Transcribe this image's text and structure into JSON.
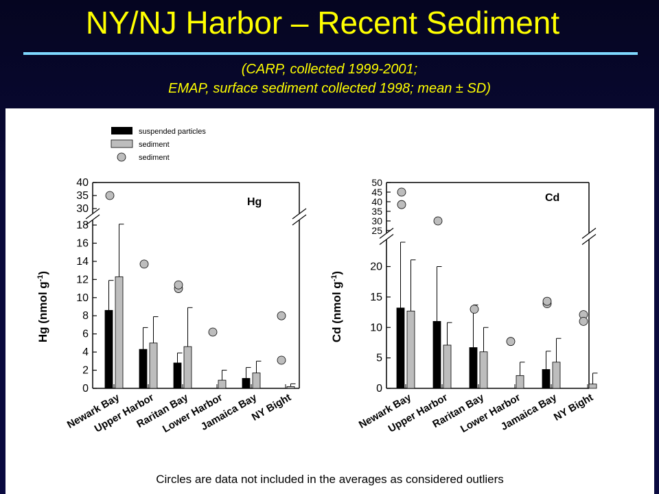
{
  "slide": {
    "title": "NY/NJ Harbor – Recent Sediment",
    "subtitle_line1": "(CARP, collected 1999-2001;",
    "subtitle_line2": "EMAP, surface sediment collected 1998; mean ± SD)",
    "footnote": "Circles are data not included in the averages as considered outliers"
  },
  "legend": {
    "items": [
      {
        "label": "suspended particles",
        "marker": "black-bar"
      },
      {
        "label": "sediment",
        "marker": "gray-bar"
      },
      {
        "label": "sediment",
        "marker": "gray-circle"
      }
    ]
  },
  "colors": {
    "background": "#0a0a3a",
    "title": "#ffff00",
    "rule": "#7fd8ff",
    "suspended": "#000000",
    "sediment": "#bdbdbd"
  },
  "chart_data": [
    {
      "type": "bar",
      "label": "Hg",
      "ylabel": "Hg (nmol g-1)",
      "categories": [
        "Newark Bay",
        "Upper Harbor",
        "Raritan Bay",
        "Lower Harbor",
        "Jamaica Bay",
        "NY Bight"
      ],
      "axis_break": {
        "lower_range": [
          0,
          18
        ],
        "upper_range": [
          30,
          40
        ]
      },
      "lower_ticks": [
        0,
        2,
        4,
        6,
        8,
        10,
        12,
        14,
        16,
        18
      ],
      "upper_ticks": [
        30,
        35,
        40
      ],
      "series": [
        {
          "name": "suspended particles",
          "values": [
            8.6,
            4.3,
            2.8,
            null,
            1.1,
            null
          ],
          "sd": [
            3.3,
            2.4,
            1.1,
            null,
            1.2,
            null
          ]
        },
        {
          "name": "sediment",
          "values": [
            12.3,
            5.0,
            4.6,
            0.9,
            1.7,
            0.2
          ],
          "sd": [
            5.8,
            2.9,
            4.3,
            1.1,
            1.3,
            0.3
          ]
        }
      ],
      "outliers": [
        {
          "category": "Newark Bay",
          "value": 35
        },
        {
          "category": "Upper Harbor",
          "value": 13.7
        },
        {
          "category": "Raritan Bay",
          "value": 11.0
        },
        {
          "category": "Raritan Bay",
          "value": 11.4
        },
        {
          "category": "Lower Harbor",
          "value": 6.2
        },
        {
          "category": "NY Bight",
          "value": 8.0
        },
        {
          "category": "NY Bight",
          "value": 3.1
        }
      ]
    },
    {
      "type": "bar",
      "label": "Cd",
      "ylabel": "Cd (nmol g-1)",
      "categories": [
        "Newark Bay",
        "Upper Harbor",
        "Raritan Bay",
        "Lower Harbor",
        "Jamaica Bay",
        "NY Bight"
      ],
      "axis_break": {
        "lower_range": [
          0,
          24
        ],
        "upper_range": [
          25,
          50
        ]
      },
      "lower_ticks": [
        0,
        5,
        10,
        15,
        20
      ],
      "upper_ticks": [
        25,
        30,
        35,
        40,
        45,
        50
      ],
      "series": [
        {
          "name": "suspended particles",
          "values": [
            13.2,
            11.0,
            6.7,
            null,
            3.1,
            null
          ],
          "sd": [
            10.8,
            9.0,
            7.0,
            null,
            3.0,
            null
          ]
        },
        {
          "name": "sediment",
          "values": [
            12.7,
            7.1,
            6.0,
            2.1,
            4.3,
            0.7
          ],
          "sd": [
            8.4,
            3.7,
            4.0,
            2.2,
            3.9,
            1.8
          ]
        }
      ],
      "outliers": [
        {
          "category": "Newark Bay",
          "value": 45
        },
        {
          "category": "Newark Bay",
          "value": 38.5
        },
        {
          "category": "Upper Harbor",
          "value": 30
        },
        {
          "category": "Raritan Bay",
          "value": 13.0
        },
        {
          "category": "Lower Harbor",
          "value": 7.7
        },
        {
          "category": "Jamaica Bay",
          "value": 13.9
        },
        {
          "category": "Jamaica Bay",
          "value": 14.3
        },
        {
          "category": "NY Bight",
          "value": 12.1
        },
        {
          "category": "NY Bight",
          "value": 11.0
        }
      ]
    }
  ]
}
